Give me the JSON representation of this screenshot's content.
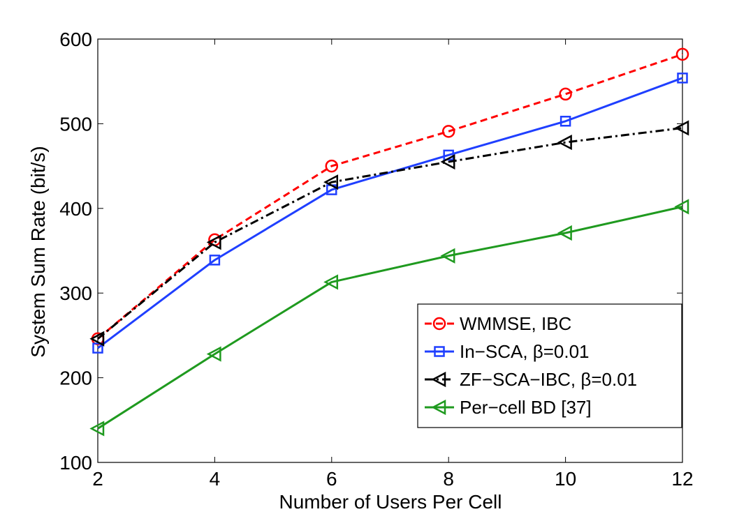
{
  "chart_data": {
    "type": "line",
    "title": "",
    "xlabel": "Number of Users Per Cell",
    "ylabel": "System Sum Rate (bit/s)",
    "xlim": [
      2,
      12
    ],
    "ylim": [
      100,
      600
    ],
    "xticks": [
      2,
      4,
      6,
      8,
      10,
      12
    ],
    "yticks": [
      100,
      200,
      300,
      400,
      500,
      600
    ],
    "x": [
      2,
      4,
      6,
      8,
      10,
      12
    ],
    "grid": false,
    "legend_position": "bottom-right",
    "series": [
      {
        "name": "WMMSE, IBC",
        "values": [
          246,
          363,
          450,
          491,
          535,
          582
        ],
        "color": "#ff0000",
        "line_style": "dashed",
        "marker": "circle"
      },
      {
        "name": "In−SCA, β=0.01",
        "values": [
          235,
          339,
          422,
          463,
          503,
          554
        ],
        "color": "#1f3fff",
        "line_style": "solid",
        "marker": "square"
      },
      {
        "name": "ZF−SCA−IBC, β=0.01",
        "values": [
          246,
          360,
          431,
          455,
          478,
          495
        ],
        "color": "#000000",
        "line_style": "dashdot",
        "marker": "triangle-left"
      },
      {
        "name": "Per−cell BD [37]",
        "values": [
          140,
          228,
          313,
          344,
          371,
          402
        ],
        "color": "#1f9a1f",
        "line_style": "solid",
        "marker": "triangle-left"
      }
    ]
  }
}
